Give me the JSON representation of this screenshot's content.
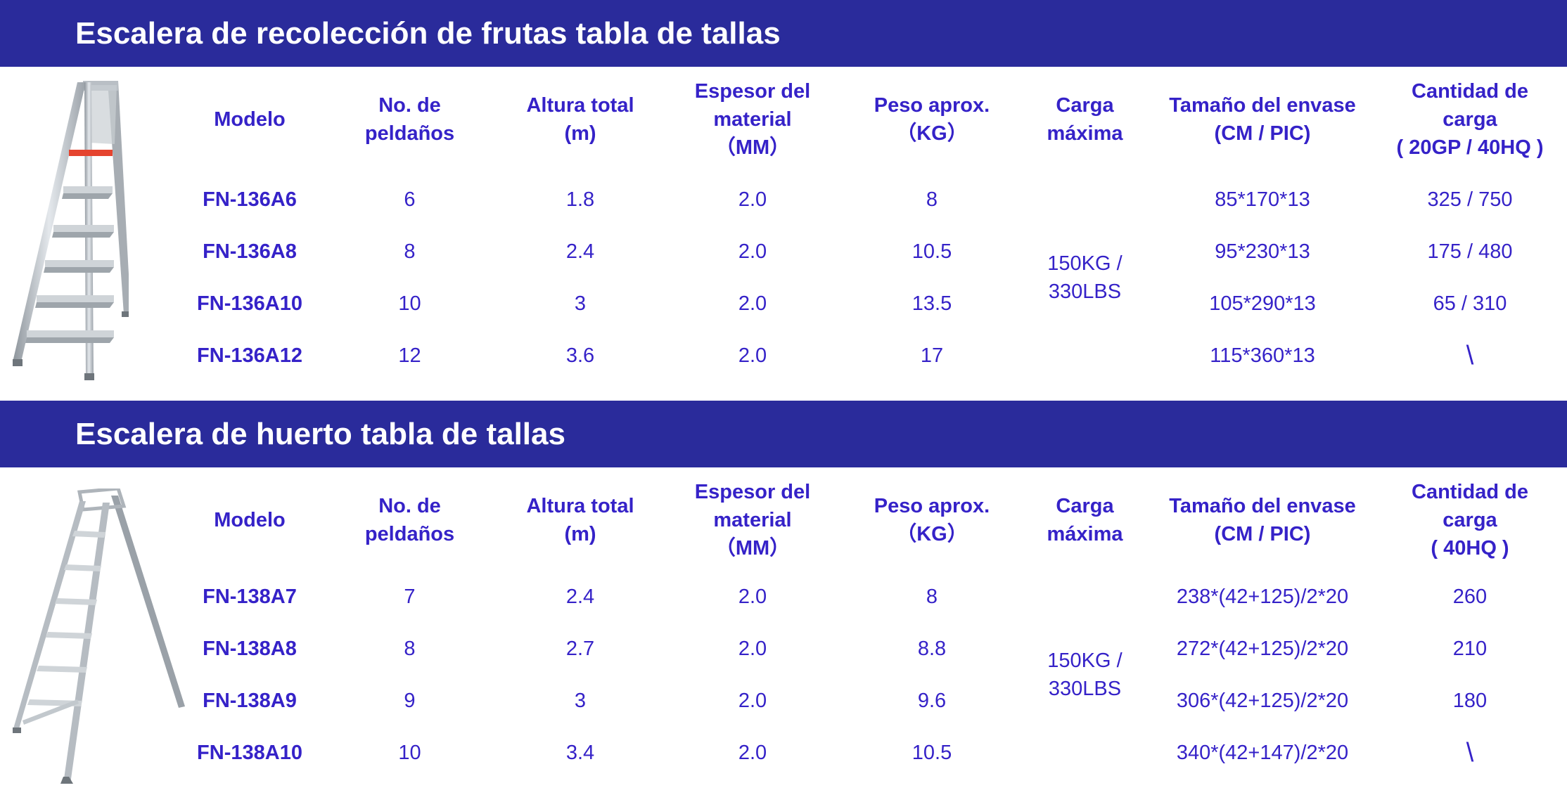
{
  "colors": {
    "band": "#2a2b9b",
    "text": "#3522c8",
    "background": "#ffffff"
  },
  "sections": [
    {
      "title": "Escalera de recolección de frutas tabla de tallas",
      "headers": [
        "Modelo",
        "No. de\npeldaños",
        "Altura total\n(m)",
        "Espesor del\nmaterial\n（MM）",
        "Peso aprox.\n（KG）",
        "Carga\nmáxima",
        "Tamaño del envase\n(CM / PIC)",
        "Cantidad de\ncarga\n( 20GP / 40HQ )"
      ],
      "rows": [
        [
          "FN-136A6",
          "6",
          "1.8",
          "2.0",
          "8",
          "85*170*13",
          "325 / 750"
        ],
        [
          "FN-136A8",
          "8",
          "2.4",
          "2.0",
          "10.5",
          "95*230*13",
          "175 / 480"
        ],
        [
          "FN-136A10",
          "10",
          "3",
          "2.0",
          "13.5",
          "105*290*13",
          "65 / 310"
        ],
        [
          "FN-136A12",
          "12",
          "3.6",
          "2.0",
          "17",
          "115*360*13",
          "\\"
        ]
      ],
      "max_load": "150KG /\n330LBS",
      "image_icon": "tripod-fruit-ladder"
    },
    {
      "title": "Escalera de huerto tabla de tallas",
      "headers": [
        "Modelo",
        "No. de\npeldaños",
        "Altura total\n(m)",
        "Espesor del\nmaterial\n（MM）",
        "Peso aprox.\n（KG）",
        "Carga\nmáxima",
        "Tamaño del envase\n(CM / PIC)",
        "Cantidad de\ncarga\n( 40HQ )"
      ],
      "rows": [
        [
          "FN-138A7",
          "7",
          "2.4",
          "2.0",
          "8",
          "238*(42+125)/2*20",
          "260"
        ],
        [
          "FN-138A8",
          "8",
          "2.7",
          "2.0",
          "8.8",
          "272*(42+125)/2*20",
          "210"
        ],
        [
          "FN-138A9",
          "9",
          "3",
          "2.0",
          "9.6",
          "306*(42+125)/2*20",
          "180"
        ],
        [
          "FN-138A10",
          "10",
          "3.4",
          "2.0",
          "10.5",
          "340*(42+147)/2*20",
          "\\"
        ]
      ],
      "max_load": "150KG /\n330LBS",
      "image_icon": "orchard-tripod-ladder"
    }
  ]
}
